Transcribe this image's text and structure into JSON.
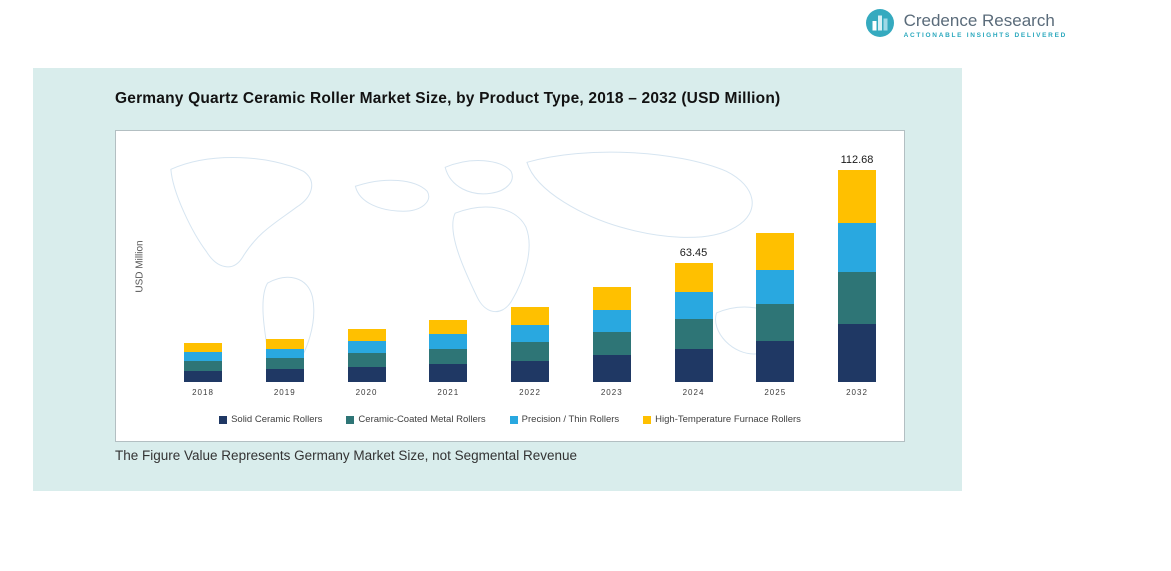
{
  "logo": {
    "name": "Credence Research",
    "tagline": "Actionable Insights Delivered"
  },
  "footnote": "The Figure Value Represents Germany Market Size, not Segmental Revenue",
  "chart_data": {
    "type": "bar",
    "stacked": true,
    "title": "Germany Quartz Ceramic Roller Market Size, by Product Type, 2018 – 2032 (USD Million)",
    "xlabel": "",
    "ylabel": "USD Million",
    "ylim": [
      0,
      120
    ],
    "grid": false,
    "legend_position": "bottom",
    "categories": [
      "2018",
      "2019",
      "2020",
      "2021",
      "2022",
      "2023",
      "2024",
      "2025",
      "2032"
    ],
    "series": [
      {
        "name": "Solid Ceramic Rollers",
        "color": "#1f3864",
        "values": [
          6.0,
          6.8,
          8.2,
          9.5,
          11.3,
          14.1,
          17.6,
          21.7,
          30.7
        ]
      },
      {
        "name": "Ceramic-Coated Metal Rollers",
        "color": "#2e7576",
        "values": [
          5.2,
          5.8,
          7.1,
          8.3,
          9.9,
          12.5,
          15.7,
          19.5,
          27.9
        ]
      },
      {
        "name": "Precision / Thin Rollers",
        "color": "#29a8e0",
        "values": [
          4.6,
          5.2,
          6.4,
          7.5,
          9.0,
          11.4,
          14.5,
          18.1,
          26.1
        ]
      },
      {
        "name": "High-Temperature Furnace Rollers",
        "color": "#ffc000",
        "values": [
          4.7,
          5.3,
          6.7,
          7.9,
          9.6,
          12.2,
          15.65,
          19.6,
          27.98
        ]
      }
    ],
    "totals": [
      20.5,
      23.1,
      28.4,
      33.2,
      39.8,
      50.2,
      63.45,
      78.9,
      112.68
    ],
    "data_labels": {
      "2024": "63.45",
      "2032": "112.68"
    }
  }
}
